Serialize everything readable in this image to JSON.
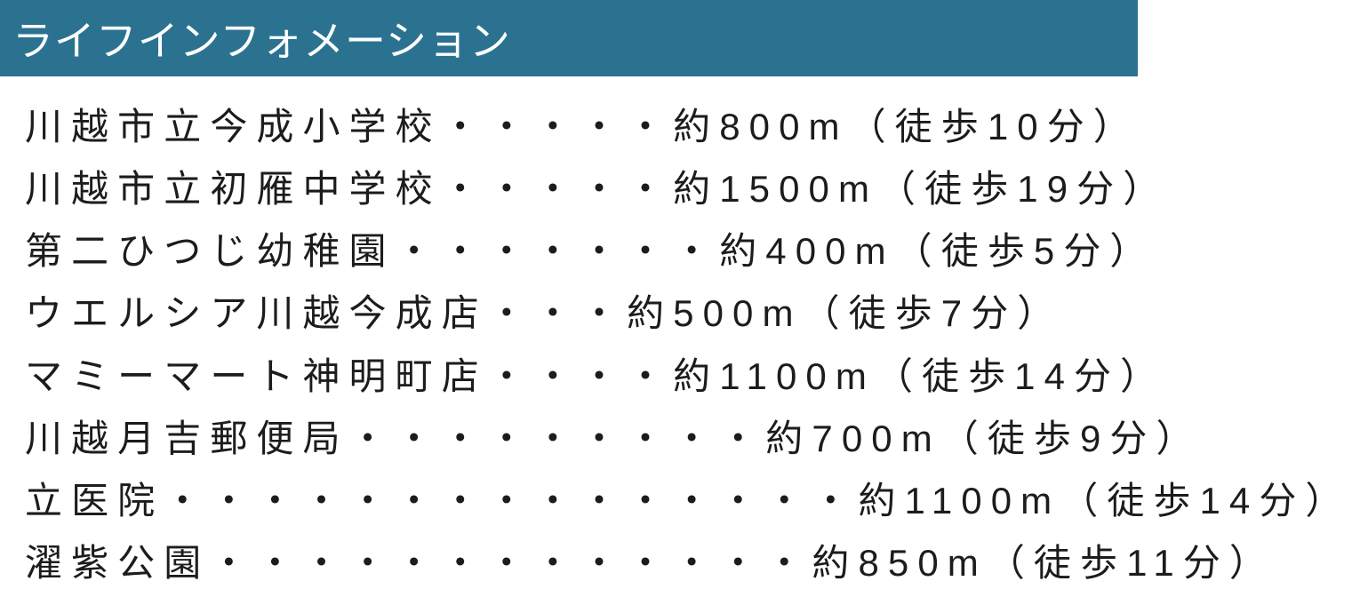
{
  "header": {
    "title": "ライフインフォメーション",
    "bg_color": "#2b7291",
    "text_color": "#ffffff"
  },
  "list": {
    "text_color": "#1c1c1c",
    "items": [
      {
        "name": "川越市立今成小学校",
        "dots": "・・・・・",
        "distance": "約800m（徒歩10分）"
      },
      {
        "name": "川越市立初雁中学校",
        "dots": "・・・・・",
        "distance": "約1500m（徒歩19分）"
      },
      {
        "name": "第二ひつじ幼稚園",
        "dots": "・・・・・・・",
        "distance": "約400m（徒歩5分）"
      },
      {
        "name": "ウエルシア川越今成店",
        "dots": "・・・",
        "distance": "約500m（徒歩7分）"
      },
      {
        "name": "マミーマート神明町店",
        "dots": "・・・・",
        "distance": "約1100m（徒歩14分）"
      },
      {
        "name": "川越月吉郵便局",
        "dots": "・・・・・・・・・",
        "distance": "約700m（徒歩9分）"
      },
      {
        "name": "立医院",
        "dots": "・・・・・・・・・・・・・・・",
        "distance": "約1100m（徒歩14分）"
      },
      {
        "name": "濯紫公園",
        "dots": "・・・・・・・・・・・・・",
        "distance": "約850m（徒歩11分）"
      }
    ]
  }
}
